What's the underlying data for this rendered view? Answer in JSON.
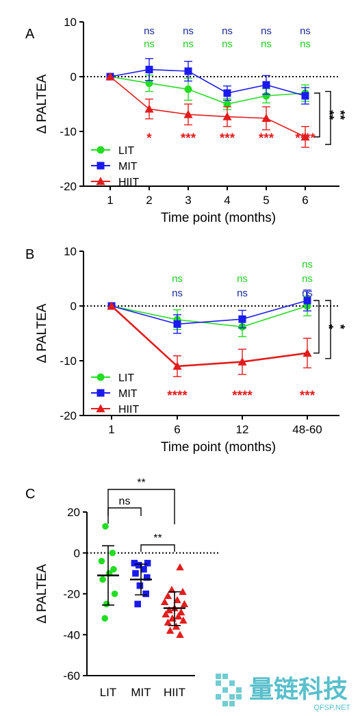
{
  "colors": {
    "lit": "#22dd22",
    "mit": "#1a1aee",
    "hiit": "#e21c1c",
    "axis": "#000000",
    "ns_green": "#22cc22",
    "ns_blue": "#1a2a9a",
    "sig_red": "#e21c1c"
  },
  "watermark": {
    "text_cn": "量链科技",
    "text_en": "QFSP.NET"
  },
  "chart_data": [
    {
      "panel": "A",
      "type": "line",
      "xlabel": "Time point (months)",
      "ylabel": "Δ PALTEA",
      "ylim": [
        -20,
        10
      ],
      "yticks": [
        "10",
        "0",
        "-10",
        "-20"
      ],
      "categories": [
        "1",
        "2",
        "3",
        "4",
        "5",
        "6"
      ],
      "series": [
        {
          "name": "LIT",
          "key": "lit",
          "marker": "circle",
          "values": [
            0,
            -1.2,
            -2.3,
            -5.0,
            -3.5,
            -3.0
          ],
          "errors": [
            0,
            1.5,
            2.0,
            1.0,
            1.3,
            1.5
          ]
        },
        {
          "name": "MIT",
          "key": "mit",
          "marker": "square",
          "values": [
            0,
            1.3,
            1.0,
            -3.0,
            -1.5,
            -3.5
          ],
          "errors": [
            0,
            2.0,
            1.8,
            1.3,
            1.7,
            1.5
          ]
        },
        {
          "name": "HIIT",
          "key": "hiit",
          "marker": "triangle",
          "values": [
            0,
            -5.9,
            -6.9,
            -7.3,
            -7.6,
            -11.0
          ],
          "errors": [
            0,
            1.8,
            1.9,
            1.8,
            2.1,
            1.9
          ]
        }
      ],
      "annotations": {
        "ns_top": [
          "",
          "ns",
          "ns",
          "ns",
          "ns",
          "ns"
        ],
        "ns_bottom": [
          "",
          "ns",
          "ns",
          "ns",
          "ns",
          "ns"
        ],
        "hiit_sig": [
          "",
          "*",
          "***",
          "***",
          "***",
          "****"
        ],
        "right_brackets": [
          "**",
          "**"
        ]
      },
      "legend_position": "bottom-left"
    },
    {
      "panel": "B",
      "type": "line",
      "xlabel": "Time point (months)",
      "ylabel": "Δ PALTEA",
      "ylim": [
        -20,
        10
      ],
      "yticks": [
        "10",
        "0",
        "-10",
        "-20"
      ],
      "categories": [
        "1",
        "6",
        "12",
        "48-60"
      ],
      "series": [
        {
          "name": "LIT",
          "key": "lit",
          "marker": "circle",
          "values": [
            0,
            -2.5,
            -3.8,
            0.0
          ],
          "errors": [
            0,
            1.8,
            1.8,
            1.8
          ]
        },
        {
          "name": "MIT",
          "key": "mit",
          "marker": "square",
          "values": [
            0,
            -3.3,
            -2.4,
            1.0
          ],
          "errors": [
            0,
            1.7,
            1.6,
            1.9
          ]
        },
        {
          "name": "HIIT",
          "key": "hiit",
          "marker": "triangle",
          "values": [
            0,
            -11.0,
            -10.2,
            -8.6
          ],
          "errors": [
            0,
            1.9,
            2.3,
            2.7
          ]
        }
      ],
      "annotations": {
        "ns_top": [
          "",
          "ns",
          "ns",
          "ns"
        ],
        "ns_bottom": [
          "",
          "ns",
          "ns",
          "ns"
        ],
        "hiit_sig": [
          "",
          "****",
          "****",
          "***"
        ],
        "right_brackets": [
          "*",
          "*"
        ]
      },
      "legend_position": "bottom-left"
    },
    {
      "panel": "C",
      "type": "scatter",
      "ylabel": "Δ PALTEA",
      "ylim": [
        -60,
        20
      ],
      "yticks": [
        "20",
        "0",
        "-20",
        "-40",
        "-60"
      ],
      "categories": [
        "LIT",
        "MIT",
        "HIIT"
      ],
      "groups": [
        {
          "name": "LIT",
          "key": "lit",
          "marker": "circle",
          "mean": -11,
          "sd_high": 3.5,
          "sd_low": -25.5,
          "points": [
            [
              -0.05,
              13
            ],
            [
              0.08,
              0
            ],
            [
              -0.12,
              -4
            ],
            [
              0.1,
              -8
            ],
            [
              0.02,
              -10
            ],
            [
              -0.1,
              -13
            ],
            [
              0.12,
              -20
            ],
            [
              -0.03,
              -25
            ],
            [
              -0.06,
              -32
            ]
          ]
        },
        {
          "name": "MIT",
          "key": "mit",
          "marker": "square",
          "mean": -13,
          "sd_high": -5.5,
          "sd_low": -20.5,
          "points": [
            [
              -0.12,
              -5
            ],
            [
              0.12,
              -5
            ],
            [
              -0.04,
              -6
            ],
            [
              0.05,
              -8
            ],
            [
              -0.1,
              -10
            ],
            [
              0.11,
              -12
            ],
            [
              -0.02,
              -16
            ],
            [
              0.09,
              -20
            ],
            [
              -0.06,
              -25
            ]
          ]
        },
        {
          "name": "HIIT",
          "key": "hiit",
          "marker": "triangle",
          "mean": -27,
          "sd_high": -19,
          "sd_low": -35.5,
          "points": [
            [
              0.1,
              -7
            ],
            [
              -0.05,
              -18
            ],
            [
              0.15,
              -19
            ],
            [
              -0.12,
              -21
            ],
            [
              0.05,
              -23
            ],
            [
              -0.18,
              -24
            ],
            [
              0.18,
              -25
            ],
            [
              0.0,
              -27
            ],
            [
              -0.1,
              -28
            ],
            [
              0.12,
              -29
            ],
            [
              -0.16,
              -30
            ],
            [
              0.07,
              -31
            ],
            [
              -0.04,
              -32
            ],
            [
              0.16,
              -33
            ],
            [
              -0.12,
              -34
            ],
            [
              0.03,
              -36
            ],
            [
              -0.08,
              -38
            ],
            [
              0.1,
              -40
            ]
          ]
        }
      ],
      "brackets": [
        {
          "from": "LIT",
          "to": "MIT",
          "label": "ns"
        },
        {
          "from": "MIT",
          "to": "HIIT",
          "label": "**"
        },
        {
          "from": "LIT",
          "to": "HIIT",
          "label": "**"
        }
      ]
    }
  ]
}
